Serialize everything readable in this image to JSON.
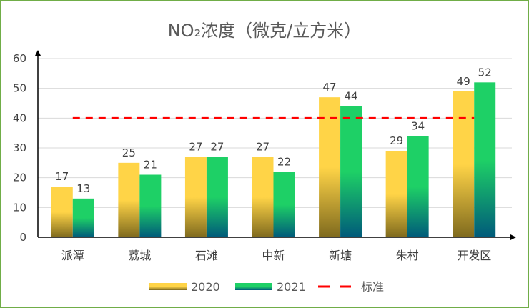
{
  "chart_data": {
    "type": "bar",
    "title": "NO₂浓度（微克/立方米）",
    "categories": [
      "派潭",
      "荔城",
      "石滩",
      "中新",
      "新塘",
      "朱村",
      "开发区"
    ],
    "series": [
      {
        "name": "2020",
        "values": [
          17,
          25,
          27,
          27,
          47,
          29,
          49
        ],
        "color_top": "#ffd447",
        "color_bottom": "#7f6a1e"
      },
      {
        "name": "2021",
        "values": [
          13,
          21,
          27,
          22,
          44,
          34,
          52
        ],
        "color_top": "#1ed066",
        "color_bottom": "#005a7a"
      }
    ],
    "reference_line": {
      "name": "标准",
      "value": 40,
      "color": "#ff0000",
      "style": "dashed"
    },
    "ylim": [
      0,
      60
    ],
    "yticks": [
      0,
      10,
      20,
      30,
      40,
      50,
      60
    ],
    "grid": true,
    "data_labels": true,
    "legend": "bottom"
  }
}
